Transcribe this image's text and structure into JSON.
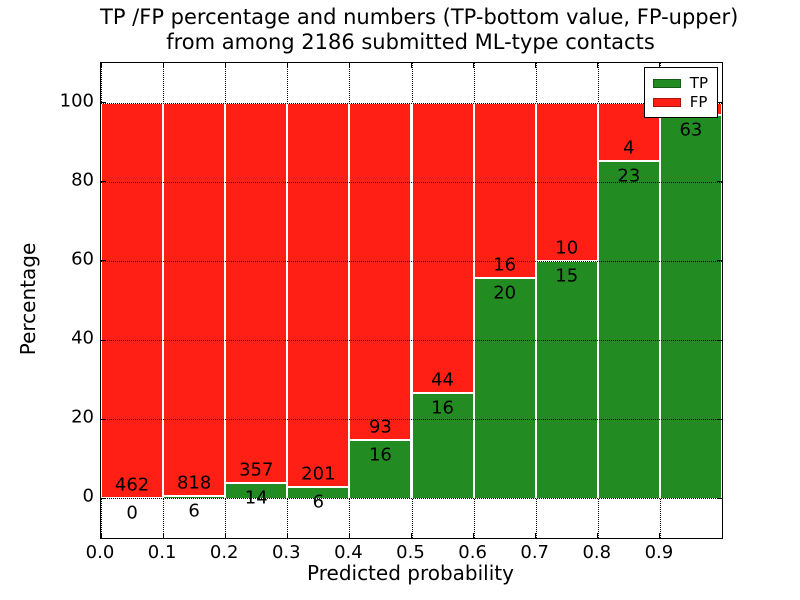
{
  "title": {
    "line1": "TP /FP percentage and numbers (TP-bottom value, FP-upper)",
    "line2": "from among 2186 submitted ML-type contacts"
  },
  "axes": {
    "xlabel": "Predicted probability",
    "ylabel": "Percentage",
    "xtick_labels": [
      "0.0",
      "0.1",
      "0.2",
      "0.3",
      "0.4",
      "0.5",
      "0.6",
      "0.7",
      "0.8",
      "0.9"
    ],
    "ytick_labels": [
      "0",
      "20",
      "40",
      "60",
      "80",
      "100"
    ]
  },
  "legend": {
    "entries": [
      {
        "label": "TP",
        "color": "#228b22"
      },
      {
        "label": "FP",
        "color": "#ff1f14"
      }
    ]
  },
  "chart_data": {
    "type": "bar",
    "variant": "stacked-percentage",
    "title": "TP /FP percentage and numbers (TP-bottom value, FP-upper) from among 2186 submitted ML-type contacts",
    "xlabel": "Predicted probability",
    "ylabel": "Percentage",
    "xlim": [
      0.0,
      1.0
    ],
    "ylim": [
      -10,
      110
    ],
    "xticks": [
      0.0,
      0.1,
      0.2,
      0.3,
      0.4,
      0.5,
      0.6,
      0.7,
      0.8,
      0.9
    ],
    "yticks": [
      0,
      20,
      40,
      60,
      80,
      100
    ],
    "grid": "dotted",
    "legend_position": "upper-right",
    "total_contacts": 2186,
    "colors": {
      "tp": "#228b22",
      "fp": "#ff1f14",
      "bar_edge": "#ffffff"
    },
    "bars": [
      {
        "x0": 0.0,
        "x1": 0.1,
        "tp_label": "0",
        "fp_label": "462",
        "tp_pct": 0.0
      },
      {
        "x0": 0.1,
        "x1": 0.2,
        "tp_label": "6",
        "fp_label": "818",
        "tp_pct": 0.73
      },
      {
        "x0": 0.2,
        "x1": 0.3,
        "tp_label": "14",
        "fp_label": "357",
        "tp_pct": 3.77
      },
      {
        "x0": 0.3,
        "x1": 0.4,
        "tp_label": "6",
        "fp_label": "201",
        "tp_pct": 2.9
      },
      {
        "x0": 0.4,
        "x1": 0.5,
        "tp_label": "16",
        "fp_label": "93",
        "tp_pct": 14.68
      },
      {
        "x0": 0.5,
        "x1": 0.6,
        "tp_label": "16",
        "fp_label": "44",
        "tp_pct": 26.67
      },
      {
        "x0": 0.6,
        "x1": 0.7,
        "tp_label": "20",
        "fp_label": "16",
        "tp_pct": 55.56
      },
      {
        "x0": 0.7,
        "x1": 0.8,
        "tp_label": "15",
        "fp_label": "10",
        "tp_pct": 60.0
      },
      {
        "x0": 0.8,
        "x1": 0.9,
        "tp_label": "23",
        "fp_label": "4",
        "tp_pct": 85.19
      },
      {
        "x0": 0.9,
        "x1": 1.0,
        "tp_label": "63",
        "fp_label": "",
        "tp_pct": 96.92
      }
    ]
  }
}
